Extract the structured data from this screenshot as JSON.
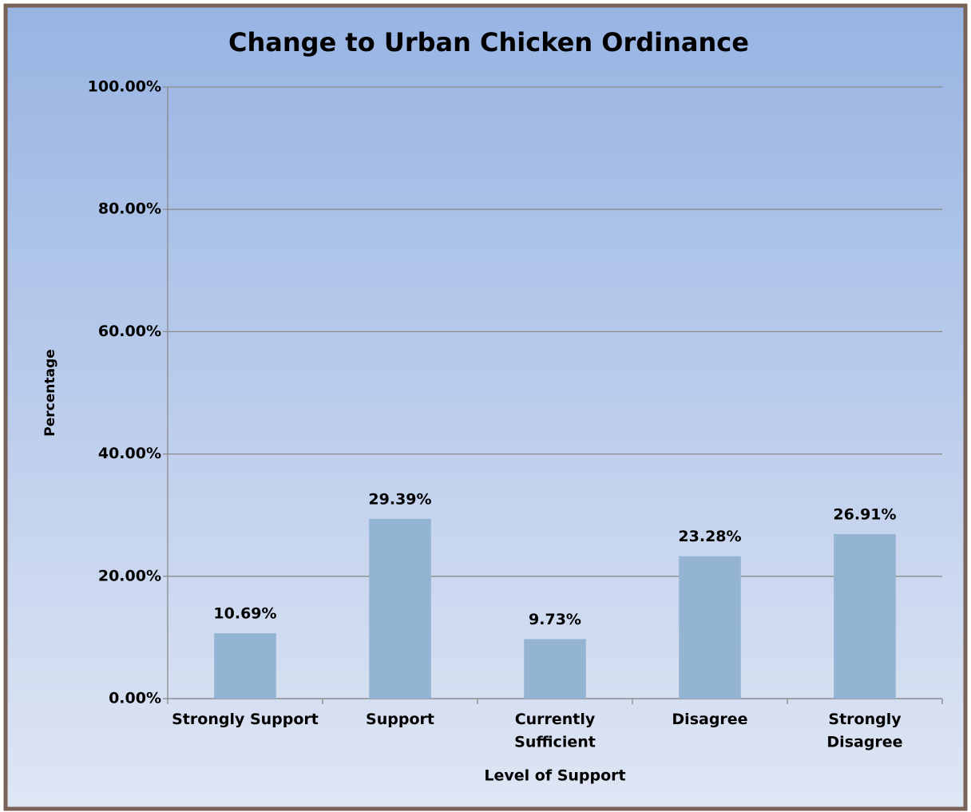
{
  "chart_data": {
    "type": "bar",
    "title": "Change to Urban Chicken Ordinance",
    "x_label": "Level of Support",
    "y_label": "Percentage",
    "categories": [
      "Strongly Support",
      "Support",
      "Currently Sufficient",
      "Disagree",
      "Strongly Disagree"
    ],
    "values": [
      10.69,
      29.39,
      9.73,
      23.28,
      26.91
    ],
    "value_labels": [
      "10.69%",
      "29.39%",
      "9.73%",
      "23.28%",
      "26.91%"
    ],
    "color": "#93b4d3",
    "ylim": [
      0,
      100
    ],
    "yticks": [
      {
        "value": 0,
        "label": "0.00%"
      },
      {
        "value": 20,
        "label": "20.00%"
      },
      {
        "value": 40,
        "label": "40.00%"
      },
      {
        "value": 60,
        "label": "60.00%"
      },
      {
        "value": 80,
        "label": "80.00%"
      },
      {
        "value": 100,
        "label": "100.00%"
      }
    ],
    "grid": true
  }
}
